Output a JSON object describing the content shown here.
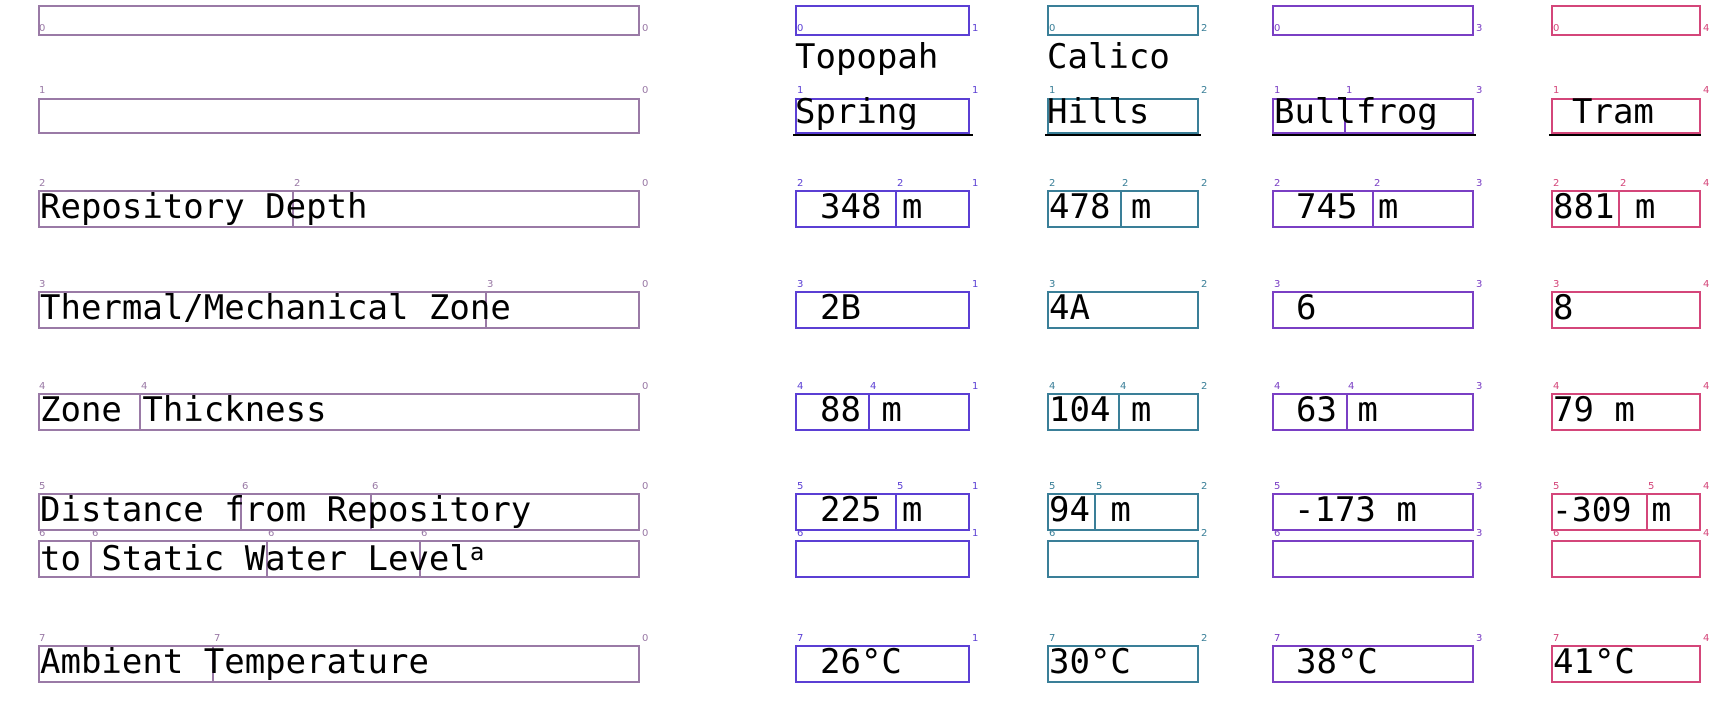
{
  "columns": {
    "topopah": {
      "line1": "Topopah",
      "line2": "Spring"
    },
    "calico": {
      "line1": "Calico",
      "line2": "Hills"
    },
    "bullfrog": {
      "line1": "",
      "line2": "Bullfrog"
    },
    "tram": {
      "line1": "",
      "line2": "Tram"
    }
  },
  "rows": {
    "depth": {
      "label": "Repository Depth",
      "topopah": "348 m",
      "calico": "478 m",
      "bullfrog": "745 m",
      "tram": "881 m"
    },
    "zone": {
      "label": "Thermal/Mechanical Zone",
      "topopah": "2B",
      "calico": "4A",
      "bullfrog": "6",
      "tram": "8"
    },
    "thickness": {
      "label": "Zone Thickness",
      "topopah": "88 m",
      "calico": "104 m",
      "bullfrog": "63 m",
      "tram": "79 m"
    },
    "distance": {
      "label_line1": "Distance from Repository",
      "label_line2": "to Static Water Level",
      "footnote": "a",
      "topopah": "225 m",
      "calico": "94 m",
      "bullfrog": "-173 m",
      "tram": "-309 m"
    },
    "temperature": {
      "label": "Ambient Temperature",
      "topopah": "26°C",
      "calico": "30°C",
      "bullfrog": "38°C",
      "tram": "41°C"
    }
  },
  "box_markers": {
    "col0": "0",
    "col1": "1",
    "col2": "2",
    "col3": "3",
    "col4": "4",
    "row0": "0",
    "row1": "1",
    "row2": "2",
    "row3": "3",
    "row4": "4",
    "row5": "5",
    "row6": "6",
    "row7": "7"
  }
}
